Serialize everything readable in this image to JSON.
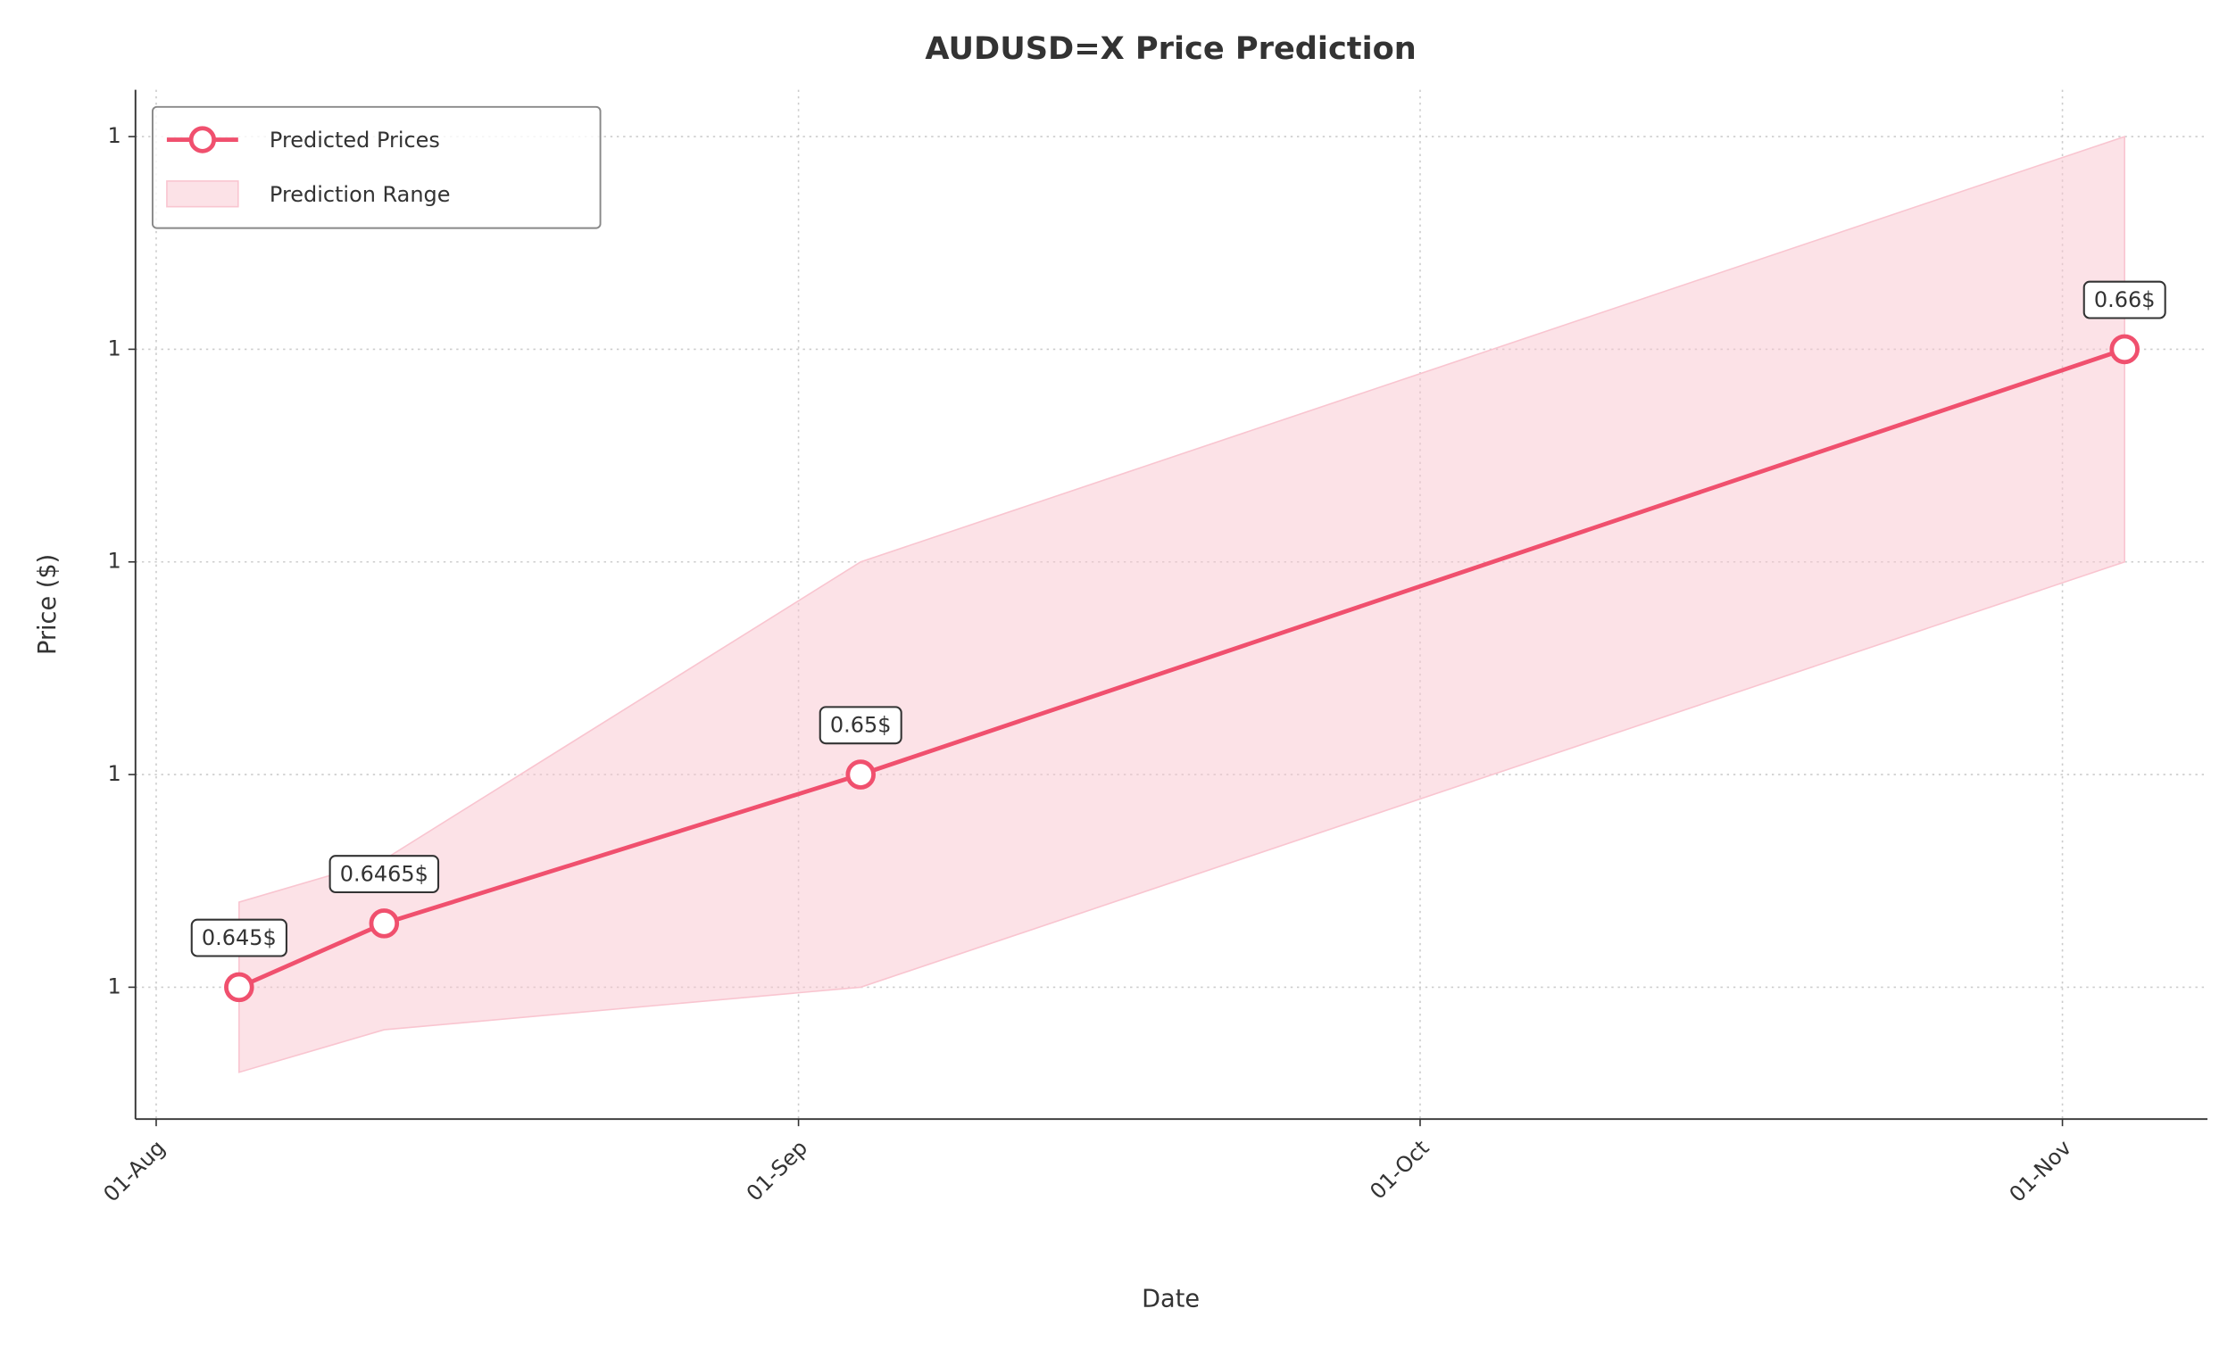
{
  "chart_data": {
    "type": "line",
    "title": "AUDUSD=X Price Prediction",
    "xlabel": "Date",
    "ylabel": "Price ($)",
    "x": [
      "05-Aug",
      "12-Aug",
      "04-Sep",
      "04-Nov"
    ],
    "series": [
      {
        "name": "Predicted Prices",
        "color": "#f0506e",
        "values": [
          0.645,
          0.6465,
          0.65,
          0.66
        ],
        "value_labels": [
          "0.645$",
          "0.6465$",
          "0.65$",
          "0.66$"
        ]
      }
    ],
    "band": {
      "name": "Prediction Range",
      "color": "#f9c5d0",
      "lower": [
        0.643,
        0.644,
        0.645,
        0.655
      ],
      "upper": [
        0.647,
        0.648,
        0.655,
        0.665
      ]
    },
    "xlim": [
      "31-Jul",
      "08-Nov"
    ],
    "xticks": [
      "01-Aug",
      "01-Sep",
      "01-Oct",
      "01-Nov"
    ],
    "ylim": [
      0.6419,
      0.6661
    ],
    "yticks": [
      {
        "value": 0.645,
        "label": "1"
      },
      {
        "value": 0.65,
        "label": "1"
      },
      {
        "value": 0.655,
        "label": "1"
      },
      {
        "value": 0.66,
        "label": "1"
      },
      {
        "value": 0.665,
        "label": "1"
      }
    ],
    "grid": true,
    "legend": "upper left"
  }
}
